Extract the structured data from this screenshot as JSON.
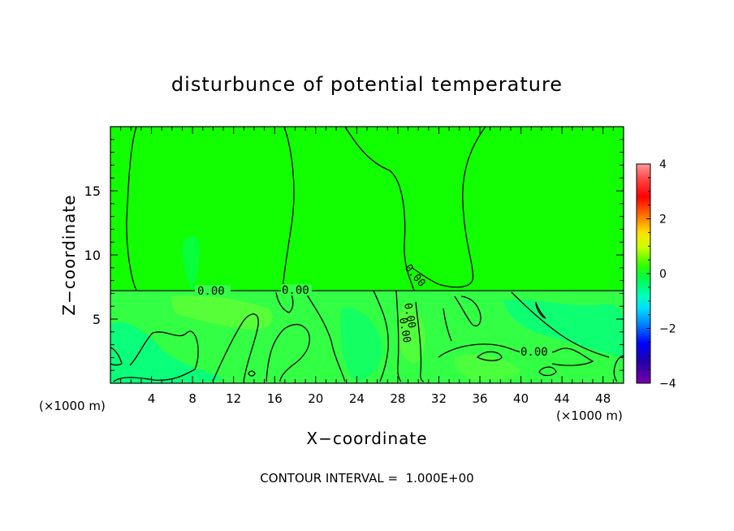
{
  "chart_data": {
    "type": "heatmap",
    "title": "disturbunce of potential temperature",
    "xlabel": "X−coordinate",
    "ylabel": "Z−coordinate",
    "x_unit": "(×1000 m)",
    "y_unit": "(×1000 m)",
    "xlim": [
      0,
      50
    ],
    "ylim": [
      0,
      20
    ],
    "x_ticks": [
      4,
      8,
      12,
      16,
      20,
      24,
      28,
      32,
      36,
      40,
      44,
      48
    ],
    "y_ticks": [
      5,
      10,
      15
    ],
    "colorbar": {
      "range": [
        -4,
        4
      ],
      "ticks": [
        4,
        2,
        0,
        -2,
        -4
      ],
      "tick_labels": [
        "4",
        "2",
        "0",
        "−2",
        "−4"
      ]
    },
    "contour_labels": [
      "0.00",
      "0.00",
      "0.00",
      "0.00",
      "0.00",
      "0.00"
    ],
    "footer": "CONTOUR INTERVAL =  1.000E+00",
    "colors": {
      "field_upper": "#11ff00",
      "field_lower_light": "#33ff44",
      "field_lower_cyan": "#00ff88",
      "contour": "#000000"
    }
  }
}
